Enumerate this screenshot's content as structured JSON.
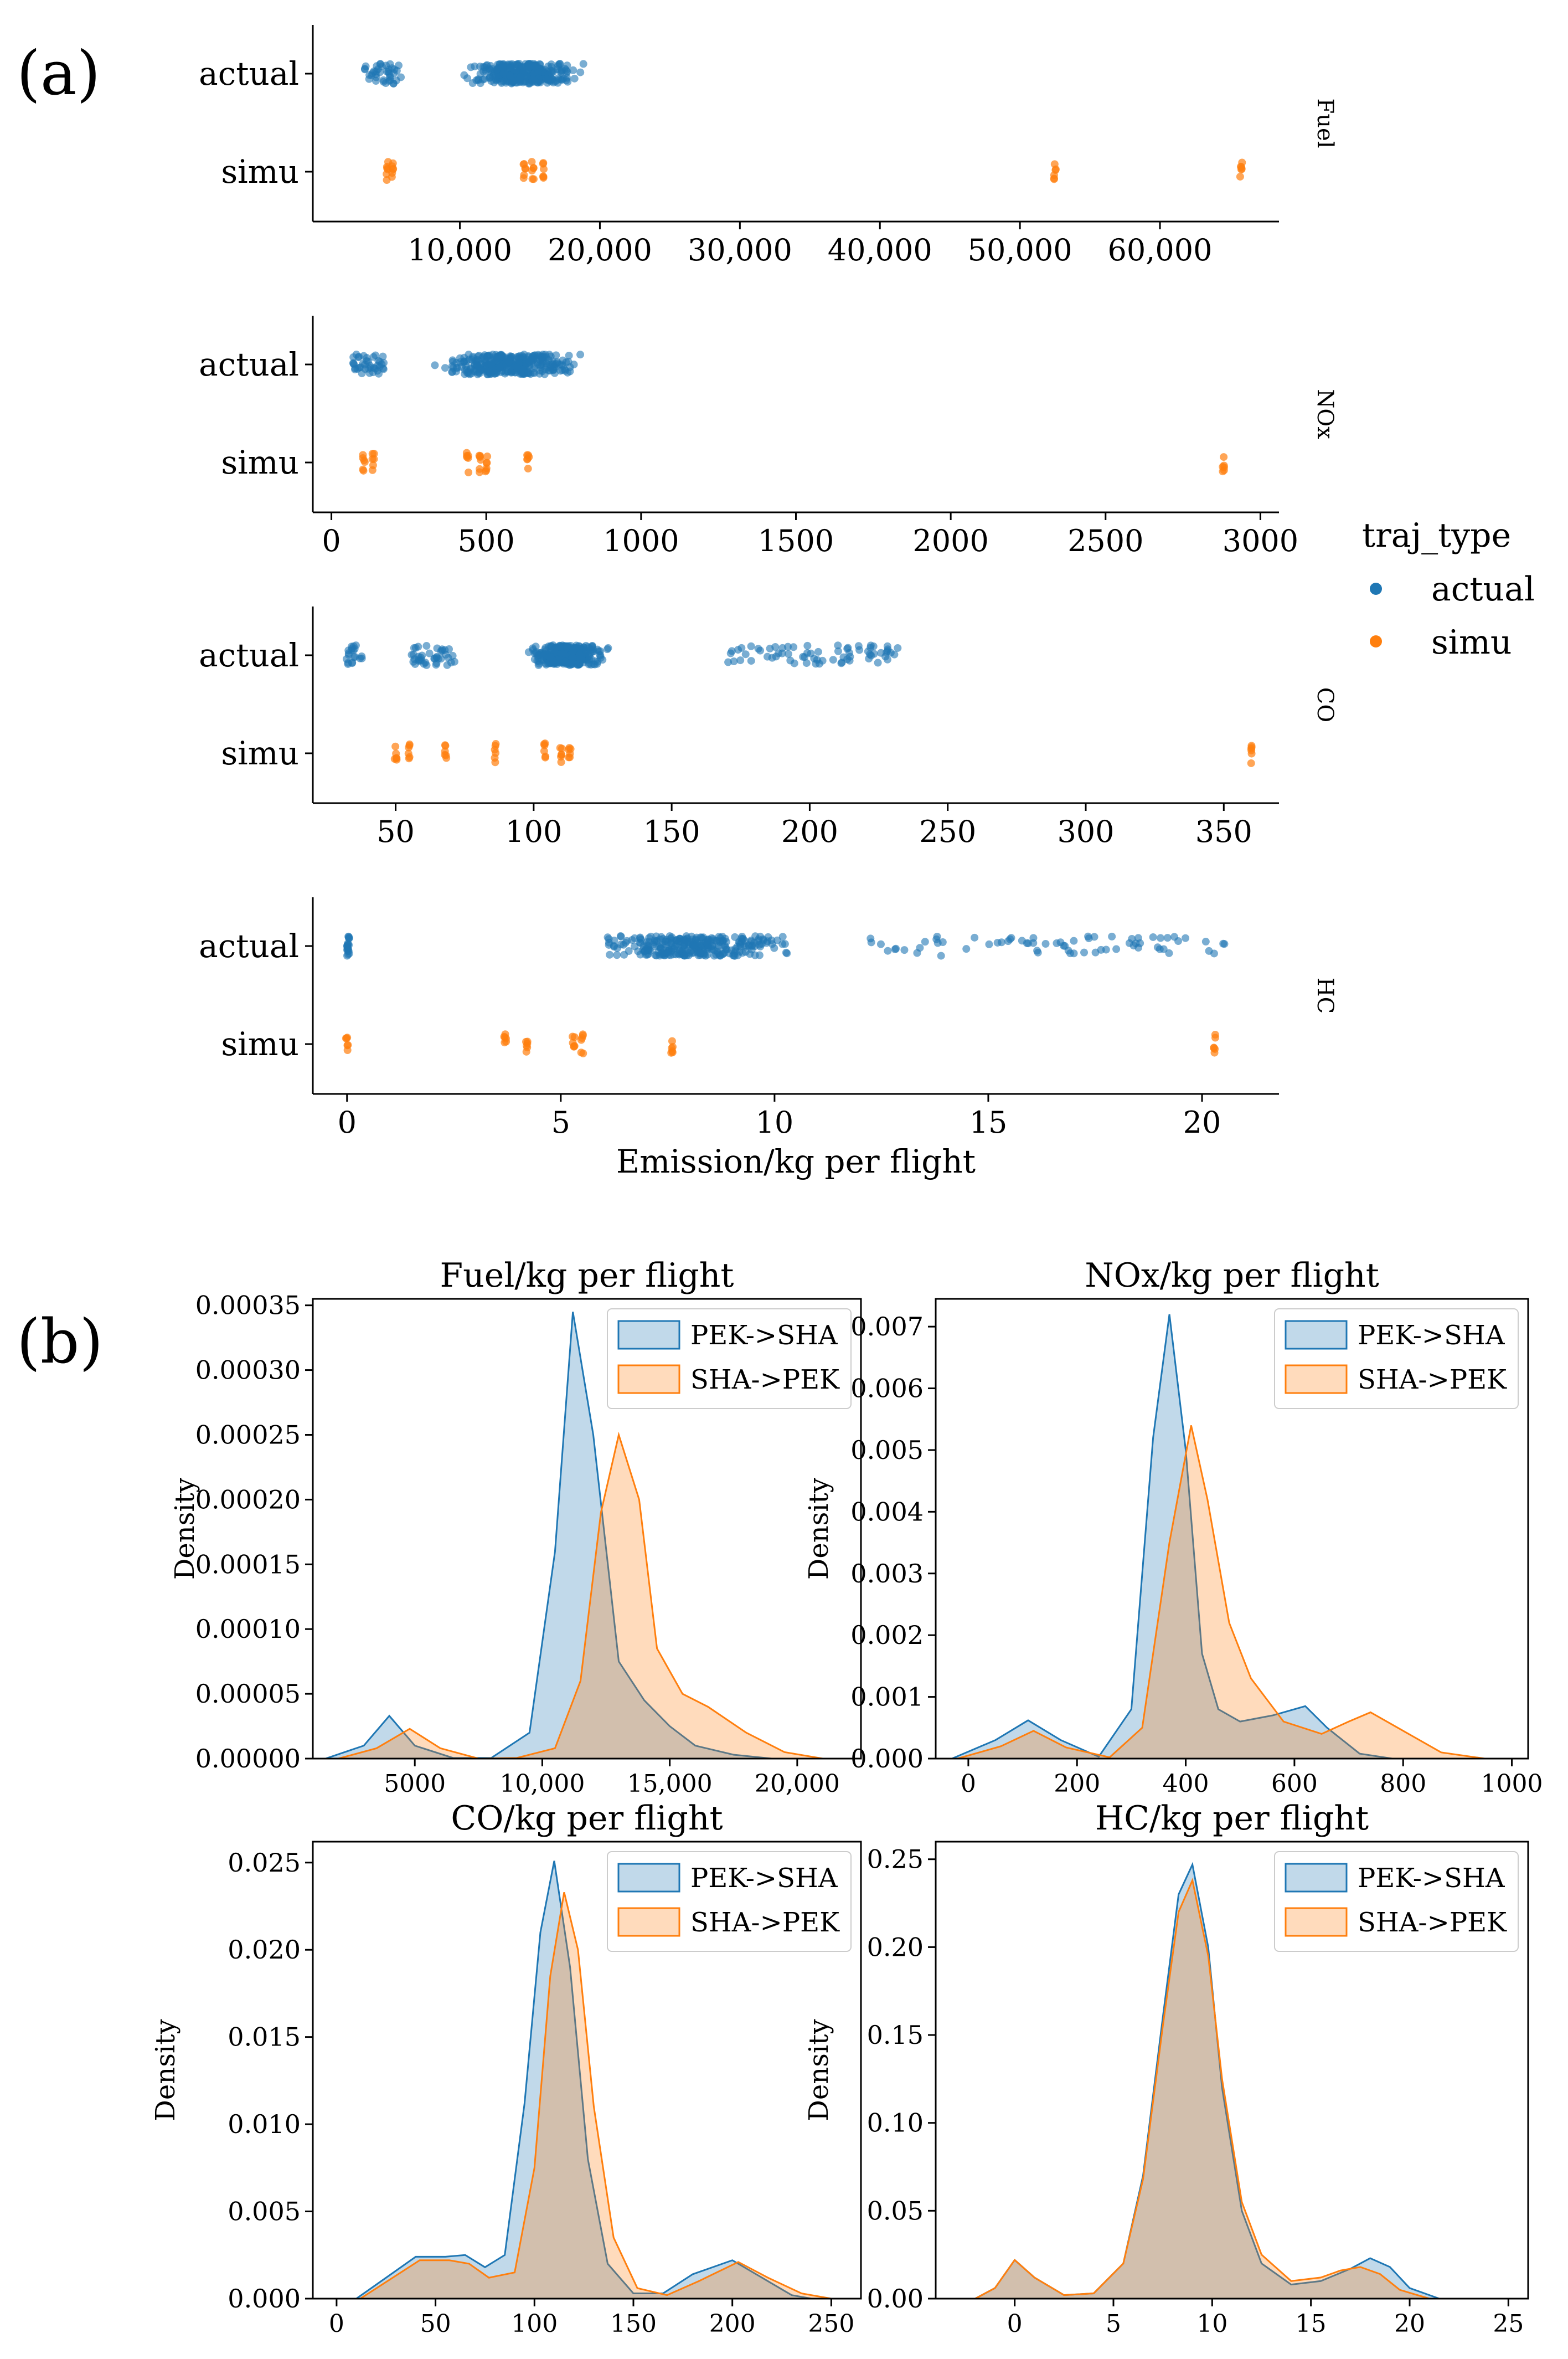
{
  "panel_labels": {
    "a": "(a)",
    "b": "(b)"
  },
  "legend_a": {
    "title": "traj_type",
    "items": [
      {
        "label": "actual",
        "color": "#1f77b4"
      },
      {
        "label": "simu",
        "color": "#ff7f0e"
      }
    ]
  },
  "chart_data": [
    {
      "type": "scatter",
      "facet": "Fuel",
      "categories": [
        "actual",
        "simu"
      ],
      "xlim": [
        -500,
        68500
      ],
      "xticks": [
        10000,
        20000,
        30000,
        40000,
        50000,
        60000
      ],
      "xtick_labels": [
        "10,000",
        "20,000",
        "30,000",
        "40,000",
        "50,000",
        "60,000"
      ],
      "xlabel": "",
      "actual_clusters": [
        [
          3200,
          5800,
          40
        ],
        [
          9800,
          19200,
          320
        ]
      ],
      "simu_values": [
        4800,
        5200,
        14600,
        15200,
        16000,
        52500,
        65800
      ]
    },
    {
      "type": "scatter",
      "facet": "NOx",
      "categories": [
        "actual",
        "simu"
      ],
      "xlim": [
        -60,
        3060
      ],
      "xticks": [
        0,
        500,
        1000,
        1500,
        2000,
        2500,
        3000
      ],
      "xtick_labels": [
        "0",
        "500",
        "1000",
        "1500",
        "2000",
        "2500",
        "3000"
      ],
      "xlabel": "",
      "actual_clusters": [
        [
          70,
          170,
          40
        ],
        [
          280,
          850,
          320
        ]
      ],
      "simu_values": [
        105,
        135,
        440,
        480,
        500,
        635,
        2880
      ]
    },
    {
      "type": "scatter",
      "facet": "CO",
      "categories": [
        "actual",
        "simu"
      ],
      "xlim": [
        20,
        370
      ],
      "xticks": [
        50,
        100,
        150,
        200,
        250,
        300,
        350
      ],
      "xtick_labels": [
        "50",
        "100",
        "150",
        "200",
        "250",
        "300",
        "350"
      ],
      "xlabel": "",
      "actual_clusters": [
        [
          32,
          38,
          20
        ],
        [
          55,
          72,
          40
        ],
        [
          95,
          130,
          280
        ],
        [
          170,
          232,
          70
        ]
      ],
      "simu_values": [
        50,
        55,
        68,
        86,
        104,
        110,
        113,
        360
      ]
    },
    {
      "type": "scatter",
      "facet": "HC",
      "categories": [
        "actual",
        "simu"
      ],
      "xlim": [
        -0.8,
        21.8
      ],
      "xticks": [
        0,
        5,
        10,
        15,
        20
      ],
      "xtick_labels": [
        "0",
        "5",
        "10",
        "15",
        "20"
      ],
      "xlabel": "Emission/kg per flight",
      "actual_clusters": [
        [
          0,
          0.05,
          20
        ],
        [
          5.5,
          10.8,
          300
        ],
        [
          12,
          20.7,
          70
        ]
      ],
      "simu_values": [
        0,
        3.7,
        4.2,
        5.3,
        5.5,
        7.6,
        20.3
      ]
    },
    {
      "type": "area",
      "title": "Fuel/kg per flight",
      "ylabel": "Density",
      "xlim": [
        1000,
        22500
      ],
      "ylim": [
        0,
        0.000355
      ],
      "xticks": [
        5000,
        10000,
        15000,
        20000
      ],
      "xtick_labels": [
        "5000",
        "10,000",
        "15,000",
        "20,000"
      ],
      "yticks": [
        0,
        5e-05,
        0.0001,
        0.00015,
        0.0002,
        0.00025,
        0.0003,
        0.00035
      ],
      "ytick_labels": [
        "0.00000",
        "0.00005",
        "0.00010",
        "0.00015",
        "0.00020",
        "0.00025",
        "0.00030",
        "0.00035"
      ],
      "legend": [
        "PEK->SHA",
        "SHA->PEK"
      ],
      "series": [
        {
          "name": "PEK->SHA",
          "x": [
            1500,
            3000,
            4000,
            5000,
            6500,
            8000,
            9500,
            10500,
            11200,
            12000,
            13000,
            14000,
            15000,
            16000,
            17500,
            19000,
            20500
          ],
          "y": [
            0,
            1e-05,
            3.3e-05,
            1e-05,
            5e-07,
            5e-07,
            2e-05,
            0.00016,
            0.000345,
            0.00025,
            7.5e-05,
            4.5e-05,
            2.5e-05,
            1e-05,
            3e-06,
            0,
            0
          ]
        },
        {
          "name": "SHA->PEK",
          "x": [
            2000,
            3500,
            4800,
            6000,
            7500,
            9000,
            10500,
            11500,
            12300,
            13000,
            13800,
            14500,
            15500,
            16500,
            18000,
            19500,
            21000
          ],
          "y": [
            0,
            8e-06,
            2.3e-05,
            8e-06,
            0,
            5e-07,
            8e-06,
            6e-05,
            0.00019,
            0.00025,
            0.0002,
            8.5e-05,
            5e-05,
            4e-05,
            2e-05,
            5e-06,
            0
          ]
        }
      ]
    },
    {
      "type": "area",
      "title": "NOx/kg per flight",
      "ylabel": "Density",
      "xlim": [
        -60,
        1030
      ],
      "ylim": [
        0,
        0.00745
      ],
      "xticks": [
        0,
        200,
        400,
        600,
        800,
        1000
      ],
      "xtick_labels": [
        "0",
        "200",
        "400",
        "600",
        "800",
        "1000"
      ],
      "yticks": [
        0,
        0.001,
        0.002,
        0.003,
        0.004,
        0.005,
        0.006,
        0.007
      ],
      "ytick_labels": [
        "0.000",
        "0.001",
        "0.002",
        "0.003",
        "0.004",
        "0.005",
        "0.006",
        "0.007"
      ],
      "legend": [
        "PEK->SHA",
        "SHA->PEK"
      ],
      "series": [
        {
          "name": "PEK->SHA",
          "x": [
            -30,
            50,
            110,
            170,
            240,
            300,
            340,
            370,
            400,
            430,
            460,
            500,
            560,
            620,
            660,
            720,
            780
          ],
          "y": [
            0,
            0.0003,
            0.00062,
            0.0003,
            3e-05,
            0.0008,
            0.0052,
            0.0072,
            0.005,
            0.0017,
            0.0008,
            0.0006,
            0.0007,
            0.00085,
            0.0005,
            8e-05,
            0
          ]
        },
        {
          "name": "SHA->PEK",
          "x": [
            -20,
            60,
            120,
            180,
            260,
            320,
            370,
            410,
            440,
            480,
            520,
            580,
            650,
            700,
            740,
            800,
            870,
            950
          ],
          "y": [
            0,
            0.0002,
            0.00045,
            0.00018,
            2e-05,
            0.0005,
            0.0035,
            0.0054,
            0.0042,
            0.0022,
            0.0013,
            0.0006,
            0.0004,
            0.0006,
            0.00075,
            0.00045,
            0.0001,
            0
          ]
        }
      ]
    },
    {
      "type": "area",
      "title": "CO/kg per flight",
      "ylabel": "Density",
      "xlim": [
        -12,
        265
      ],
      "ylim": [
        0,
        0.0262
      ],
      "xticks": [
        0,
        50,
        100,
        150,
        200,
        250
      ],
      "xtick_labels": [
        "0",
        "50",
        "100",
        "150",
        "200",
        "250"
      ],
      "yticks": [
        0,
        0.005,
        0.01,
        0.015,
        0.02,
        0.025
      ],
      "ytick_labels": [
        "0.000",
        "0.005",
        "0.010",
        "0.015",
        "0.020",
        "0.025"
      ],
      "legend": [
        "PEK->SHA",
        "SHA->PEK"
      ],
      "series": [
        {
          "name": "PEK->SHA",
          "x": [
            10,
            25,
            40,
            55,
            65,
            75,
            85,
            95,
            103,
            110,
            118,
            127,
            137,
            150,
            165,
            180,
            200,
            215,
            230,
            240
          ],
          "y": [
            0,
            0.0012,
            0.0024,
            0.0024,
            0.0025,
            0.0018,
            0.0025,
            0.0112,
            0.021,
            0.0251,
            0.019,
            0.008,
            0.002,
            0.0003,
            0.0003,
            0.0014,
            0.0022,
            0.0012,
            0.0002,
            0
          ]
        },
        {
          "name": "SHA->PEK",
          "x": [
            12,
            27,
            42,
            57,
            67,
            77,
            90,
            100,
            108,
            115,
            122,
            130,
            140,
            152,
            167,
            183,
            203,
            218,
            235,
            250
          ],
          "y": [
            0,
            0.0011,
            0.0022,
            0.0022,
            0.002,
            0.0012,
            0.0015,
            0.0075,
            0.0185,
            0.0233,
            0.02,
            0.011,
            0.0035,
            0.0006,
            0.0002,
            0.001,
            0.0021,
            0.0012,
            0.0003,
            0
          ]
        }
      ]
    },
    {
      "type": "area",
      "title": "HC/kg per flight",
      "ylabel": "Density",
      "xlim": [
        -4,
        26
      ],
      "ylim": [
        0,
        0.26
      ],
      "xticks": [
        0,
        5,
        10,
        15,
        20,
        25
      ],
      "xtick_labels": [
        "0",
        "5",
        "10",
        "15",
        "20",
        "25"
      ],
      "yticks": [
        0,
        0.05,
        0.1,
        0.15,
        0.2,
        0.25
      ],
      "ytick_labels": [
        "0.00",
        "0.05",
        "0.10",
        "0.15",
        "0.20",
        "0.25"
      ],
      "legend": [
        "PEK->SHA",
        "SHA->PEK"
      ],
      "series": [
        {
          "name": "PEK->SHA",
          "x": [
            -2,
            -1,
            0,
            1,
            2.5,
            4,
            5.5,
            6.5,
            7.5,
            8.3,
            9,
            9.8,
            10.5,
            11.5,
            12.5,
            14,
            15.5,
            17,
            18,
            19,
            20,
            21.5
          ],
          "y": [
            0,
            0.006,
            0.022,
            0.012,
            0.002,
            0.003,
            0.02,
            0.07,
            0.16,
            0.23,
            0.247,
            0.2,
            0.12,
            0.05,
            0.02,
            0.008,
            0.01,
            0.017,
            0.023,
            0.018,
            0.006,
            0
          ]
        },
        {
          "name": "SHA->PEK",
          "x": [
            -2,
            -1,
            0,
            1,
            2.5,
            4,
            5.5,
            6.5,
            7.5,
            8.3,
            9,
            9.8,
            10.5,
            11.5,
            12.5,
            14,
            15.5,
            16.5,
            17.5,
            18.5,
            19.5,
            21
          ],
          "y": [
            0,
            0.006,
            0.022,
            0.012,
            0.002,
            0.003,
            0.02,
            0.068,
            0.155,
            0.22,
            0.238,
            0.195,
            0.125,
            0.055,
            0.025,
            0.01,
            0.012,
            0.016,
            0.018,
            0.014,
            0.005,
            0
          ]
        }
      ]
    }
  ]
}
